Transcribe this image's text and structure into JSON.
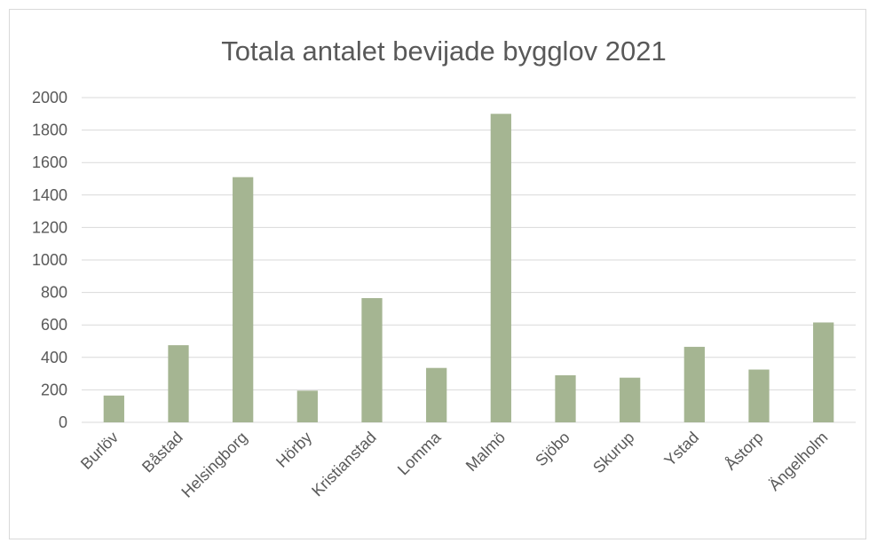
{
  "chart_data": {
    "type": "bar",
    "title": "Totala antalet bevijade bygglov 2021",
    "xlabel": "",
    "ylabel": "",
    "categories": [
      "Burlöv",
      "Båstad",
      "Helsingborg",
      "Hörby",
      "Kristianstad",
      "Lomma",
      "Malmö",
      "Sjöbo",
      "Skurup",
      "Ystad",
      "Åstorp",
      "Ängelholm"
    ],
    "values": [
      165,
      475,
      1510,
      195,
      765,
      335,
      1900,
      290,
      275,
      465,
      325,
      615
    ],
    "ylim": [
      0,
      2000
    ],
    "yticks": [
      "0",
      "200",
      "400",
      "600",
      "800",
      "1000",
      "1200",
      "1400",
      "1600",
      "1800",
      "2000"
    ],
    "grid": true,
    "legend": "none",
    "bar_color": "#a5b592",
    "grid_color": "#d9d9d9",
    "text_color": "#595959"
  }
}
